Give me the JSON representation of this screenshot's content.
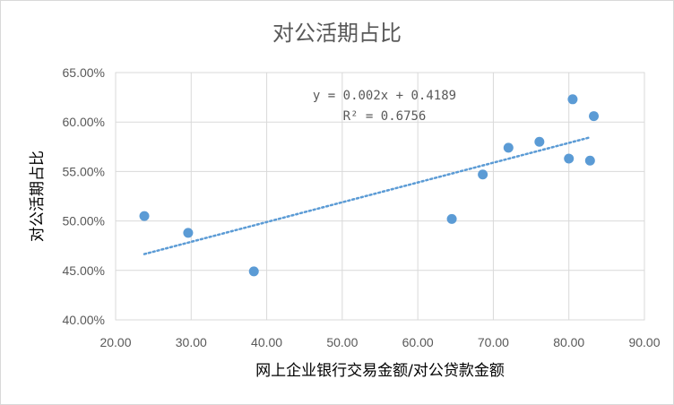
{
  "chart_data": {
    "type": "scatter",
    "title": "对公活期占比",
    "xlabel": "网上企业银行交易金额/对公贷款金额",
    "ylabel": "对公活期占比",
    "xlim": [
      20,
      90
    ],
    "ylim": [
      0.4,
      0.65
    ],
    "x_ticks": [
      "20.00",
      "30.00",
      "40.00",
      "50.00",
      "60.00",
      "70.00",
      "80.00",
      "90.00"
    ],
    "y_ticks": [
      "40.00%",
      "45.00%",
      "50.00%",
      "55.00%",
      "60.00%",
      "65.00%"
    ],
    "grid": true,
    "point_color": "#5b9bd5",
    "trendline": {
      "type": "linear",
      "x_range": [
        23.8,
        82.7
      ],
      "slope": 0.002,
      "intercept": 0.4189,
      "equation": "y = 0.002x + 0.4189",
      "r2": "R² = 0.6756",
      "color": "#5b9bd5"
    },
    "points": [
      {
        "x": 23.8,
        "y": 0.505
      },
      {
        "x": 29.6,
        "y": 0.488
      },
      {
        "x": 38.3,
        "y": 0.449
      },
      {
        "x": 64.5,
        "y": 0.502
      },
      {
        "x": 68.6,
        "y": 0.547
      },
      {
        "x": 72.0,
        "y": 0.574
      },
      {
        "x": 76.1,
        "y": 0.58
      },
      {
        "x": 80.0,
        "y": 0.563
      },
      {
        "x": 80.5,
        "y": 0.623
      },
      {
        "x": 82.8,
        "y": 0.561
      },
      {
        "x": 83.3,
        "y": 0.606
      }
    ]
  }
}
